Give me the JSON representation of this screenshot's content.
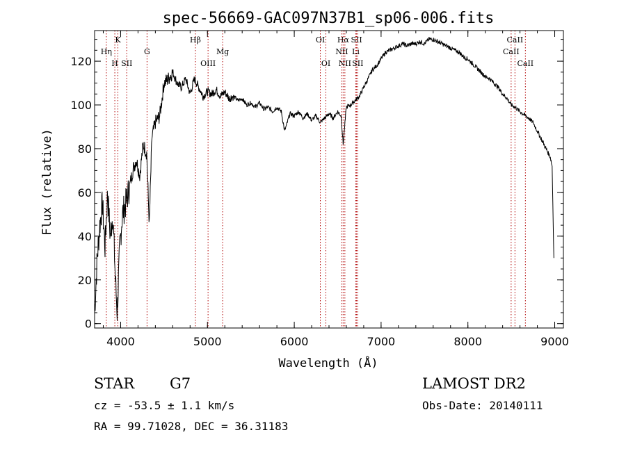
{
  "chart_data": {
    "type": "line",
    "title": "spec-56669-GAC097N37B1_sp06-006.fits",
    "xlabel": "Wavelength (Å)",
    "ylabel": "Flux (relative)",
    "xlim": [
      3700,
      9100
    ],
    "ylim": [
      -2,
      134
    ],
    "x_ticks": [
      4000,
      5000,
      6000,
      7000,
      8000,
      9000
    ],
    "y_ticks": [
      0,
      20,
      40,
      60,
      80,
      100,
      120
    ],
    "x_minor_step": 200,
    "y_minor_step": 5,
    "grid": false,
    "series": [
      {
        "x": [
          3700,
          3730,
          3760,
          3790,
          3820,
          3850,
          3880,
          3910,
          3940,
          3960,
          3990,
          4020,
          4060,
          4100,
          4140,
          4180,
          4220,
          4260,
          4300,
          4330,
          4360,
          4400,
          4450,
          4500,
          4550,
          4600,
          4650,
          4700,
          4750,
          4800,
          4850,
          4900,
          4950,
          5000,
          5050,
          5100,
          5150,
          5200,
          5250,
          5300,
          5350,
          5400,
          5450,
          5500,
          5550,
          5600,
          5650,
          5700,
          5750,
          5800,
          5850,
          5890,
          5950,
          6000,
          6050,
          6100,
          6150,
          6200,
          6250,
          6300,
          6350,
          6400,
          6450,
          6500,
          6540,
          6563,
          6600,
          6650,
          6700,
          6750,
          6800,
          6850,
          6900,
          6950,
          7000,
          7050,
          7100,
          7150,
          7200,
          7250,
          7300,
          7350,
          7400,
          7450,
          7500,
          7550,
          7600,
          7650,
          7700,
          7750,
          7800,
          7850,
          7900,
          7950,
          8000,
          8050,
          8100,
          8150,
          8200,
          8250,
          8300,
          8350,
          8400,
          8450,
          8500,
          8542,
          8600,
          8662,
          8700,
          8750,
          8800,
          8850,
          8900,
          8950,
          8970,
          8990
        ],
        "y": [
          5,
          30,
          45,
          55,
          35,
          60,
          40,
          50,
          20,
          5,
          35,
          50,
          55,
          62,
          70,
          75,
          68,
          82,
          78,
          45,
          85,
          92,
          95,
          110,
          112,
          115,
          110,
          108,
          112,
          105,
          112,
          108,
          104,
          106,
          105,
          107,
          104,
          106,
          103,
          104,
          102,
          103,
          100,
          101,
          99,
          101,
          98,
          99,
          97,
          99,
          97,
          88,
          96,
          95,
          97,
          94,
          96,
          93,
          95,
          92,
          94,
          96,
          94,
          97,
          95,
          82,
          99,
          100,
          102,
          104,
          108,
          112,
          116,
          118,
          121,
          124,
          125,
          126,
          127,
          128,
          127,
          128,
          128,
          129,
          128,
          130,
          130,
          129,
          128,
          127,
          126,
          125,
          124,
          122,
          121,
          119,
          117,
          115,
          113,
          112,
          110,
          108,
          105,
          103,
          100,
          99,
          97,
          95,
          94,
          92,
          88,
          84,
          80,
          76,
          72,
          30
        ]
      }
    ],
    "line_markers": [
      {
        "label": "Hη",
        "x": 3835,
        "row": 2
      },
      {
        "label": "H",
        "x": 3933,
        "row": 3
      },
      {
        "label": "K",
        "x": 3968,
        "row": 1
      },
      {
        "label": "SII",
        "x": 4070,
        "row": 3
      },
      {
        "label": "G",
        "x": 4304,
        "row": 2
      },
      {
        "label": "Hβ",
        "x": 4861,
        "row": 1
      },
      {
        "label": "OIII",
        "x": 5007,
        "row": 3
      },
      {
        "label": "Mg",
        "x": 5175,
        "row": 2
      },
      {
        "label": "OI",
        "x": 6300,
        "row": 1
      },
      {
        "label": "OI",
        "x": 6364,
        "row": 3
      },
      {
        "label": "Hα",
        "x": 6563,
        "row": 1
      },
      {
        "label": "NII",
        "x": 6548,
        "row": 2
      },
      {
        "label": "NII",
        "x": 6583,
        "row": 3
      },
      {
        "label": "SII",
        "x": 6717,
        "row": 1
      },
      {
        "label": "Li",
        "x": 6708,
        "row": 2
      },
      {
        "label": "SII",
        "x": 6731,
        "row": 3
      },
      {
        "label": "CaII",
        "x": 8542,
        "row": 1
      },
      {
        "label": "CaII",
        "x": 8498,
        "row": 2
      },
      {
        "label": "CaII",
        "x": 8662,
        "row": 3
      }
    ]
  },
  "info": {
    "object_class": "STAR",
    "subclass": "G7",
    "survey": "LAMOST DR2",
    "cz_text": "cz = -53.5 ± 1.1 km/s",
    "obs_date_text": "Obs-Date: 20140111",
    "coords_text": "RA =  99.71028, DEC =  36.31183"
  },
  "colors": {
    "spectrum": "#000000",
    "marker_line": "#b00000",
    "axes": "#000000",
    "background": "#ffffff"
  }
}
